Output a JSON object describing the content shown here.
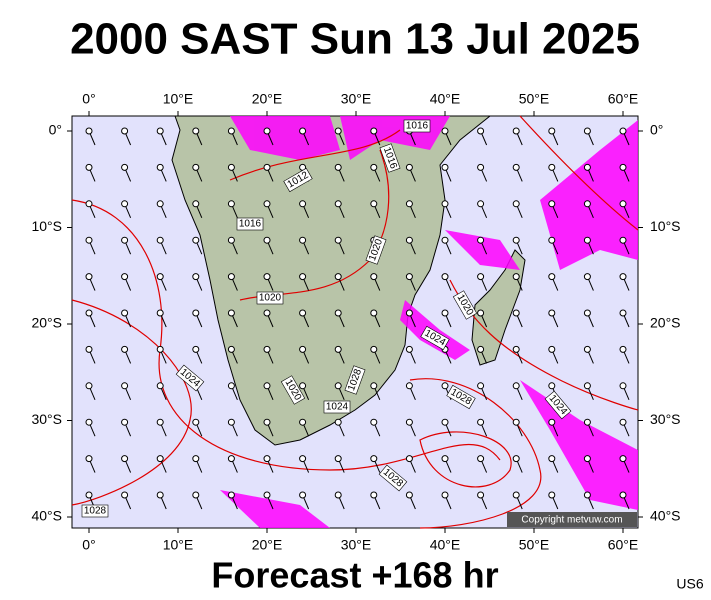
{
  "title": "2000 SAST Sun 13 Jul 2025",
  "map": {
    "lon_ticks": [
      {
        "value": 0,
        "label": "0°"
      },
      {
        "value": 10,
        "label": "10°E"
      },
      {
        "value": 20,
        "label": "20°E"
      },
      {
        "value": 30,
        "label": "30°E"
      },
      {
        "value": 40,
        "label": "40°E"
      },
      {
        "value": 50,
        "label": "50°E"
      },
      {
        "value": 60,
        "label": "60°E"
      }
    ],
    "lat_ticks": [
      {
        "value": 0,
        "label": "0°"
      },
      {
        "value": -10,
        "label": "10°S"
      },
      {
        "value": -20,
        "label": "20°S"
      },
      {
        "value": -30,
        "label": "30°S"
      },
      {
        "value": -40,
        "label": "40°S"
      }
    ],
    "isobar_labels": [
      1016,
      1016,
      1012,
      1016,
      1020,
      1020,
      1020,
      1024,
      1024,
      1020,
      1028,
      1024,
      1028,
      1024,
      1028,
      1028
    ]
  },
  "copyright": "Copyright metvuw.com",
  "footer": "Forecast +168 hr",
  "code": "US6"
}
